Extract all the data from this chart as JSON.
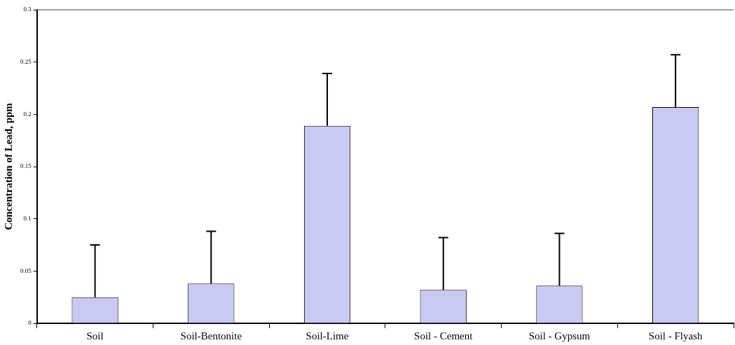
{
  "chart_data": {
    "type": "bar",
    "ylabel": "Concentration of Lead, ppm",
    "categories": [
      "Soil",
      "Soil-Bentonite",
      "Soil-Lime",
      "Soil - Cement",
      "Soil - Gypsum",
      "Soil - Flyash"
    ],
    "values": [
      0.025,
      0.038,
      0.189,
      0.032,
      0.036,
      0.207
    ],
    "errors": [
      [
        0.025,
        0.075
      ],
      [
        0.038,
        0.088
      ],
      [
        0.189,
        0.239
      ],
      [
        0.032,
        0.082
      ],
      [
        0.036,
        0.086
      ],
      [
        0.207,
        0.257
      ]
    ],
    "color": "#c8caf4",
    "ylim": [
      0,
      0.3
    ],
    "yticks": [
      0,
      0.05,
      0.1,
      0.15,
      0.2,
      0.25,
      0.3
    ],
    "grid": false,
    "legend": false
  }
}
